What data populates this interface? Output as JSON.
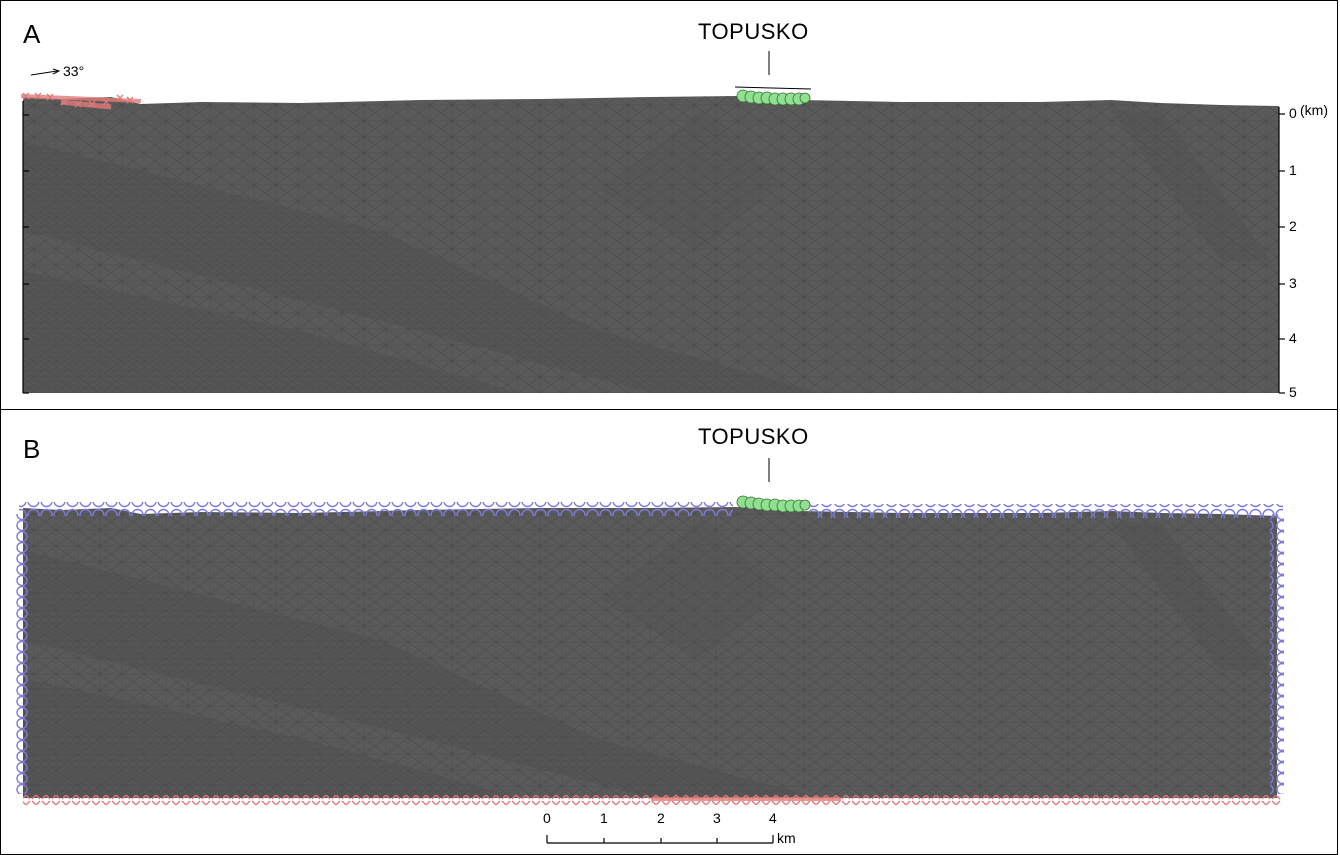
{
  "panels": [
    {
      "letter": "A",
      "site": "TOPUSKO",
      "orientation_angle": "33°"
    },
    {
      "letter": "B",
      "site": "TOPUSKO"
    }
  ],
  "depth_axis": {
    "unit": "(km)",
    "ticks": [
      "0",
      "1",
      "2",
      "3",
      "4",
      "5"
    ]
  },
  "scale_bar": {
    "unit": "km",
    "ticks": [
      "0",
      "1",
      "2",
      "3",
      "4"
    ]
  },
  "colors": {
    "mesh_fill": "#5a5a5a",
    "mesh_line": "#484848",
    "blue_boundary": "#7b7bd6",
    "green_marker": "#8fe08f",
    "red_marker": "#e07a7a"
  }
}
